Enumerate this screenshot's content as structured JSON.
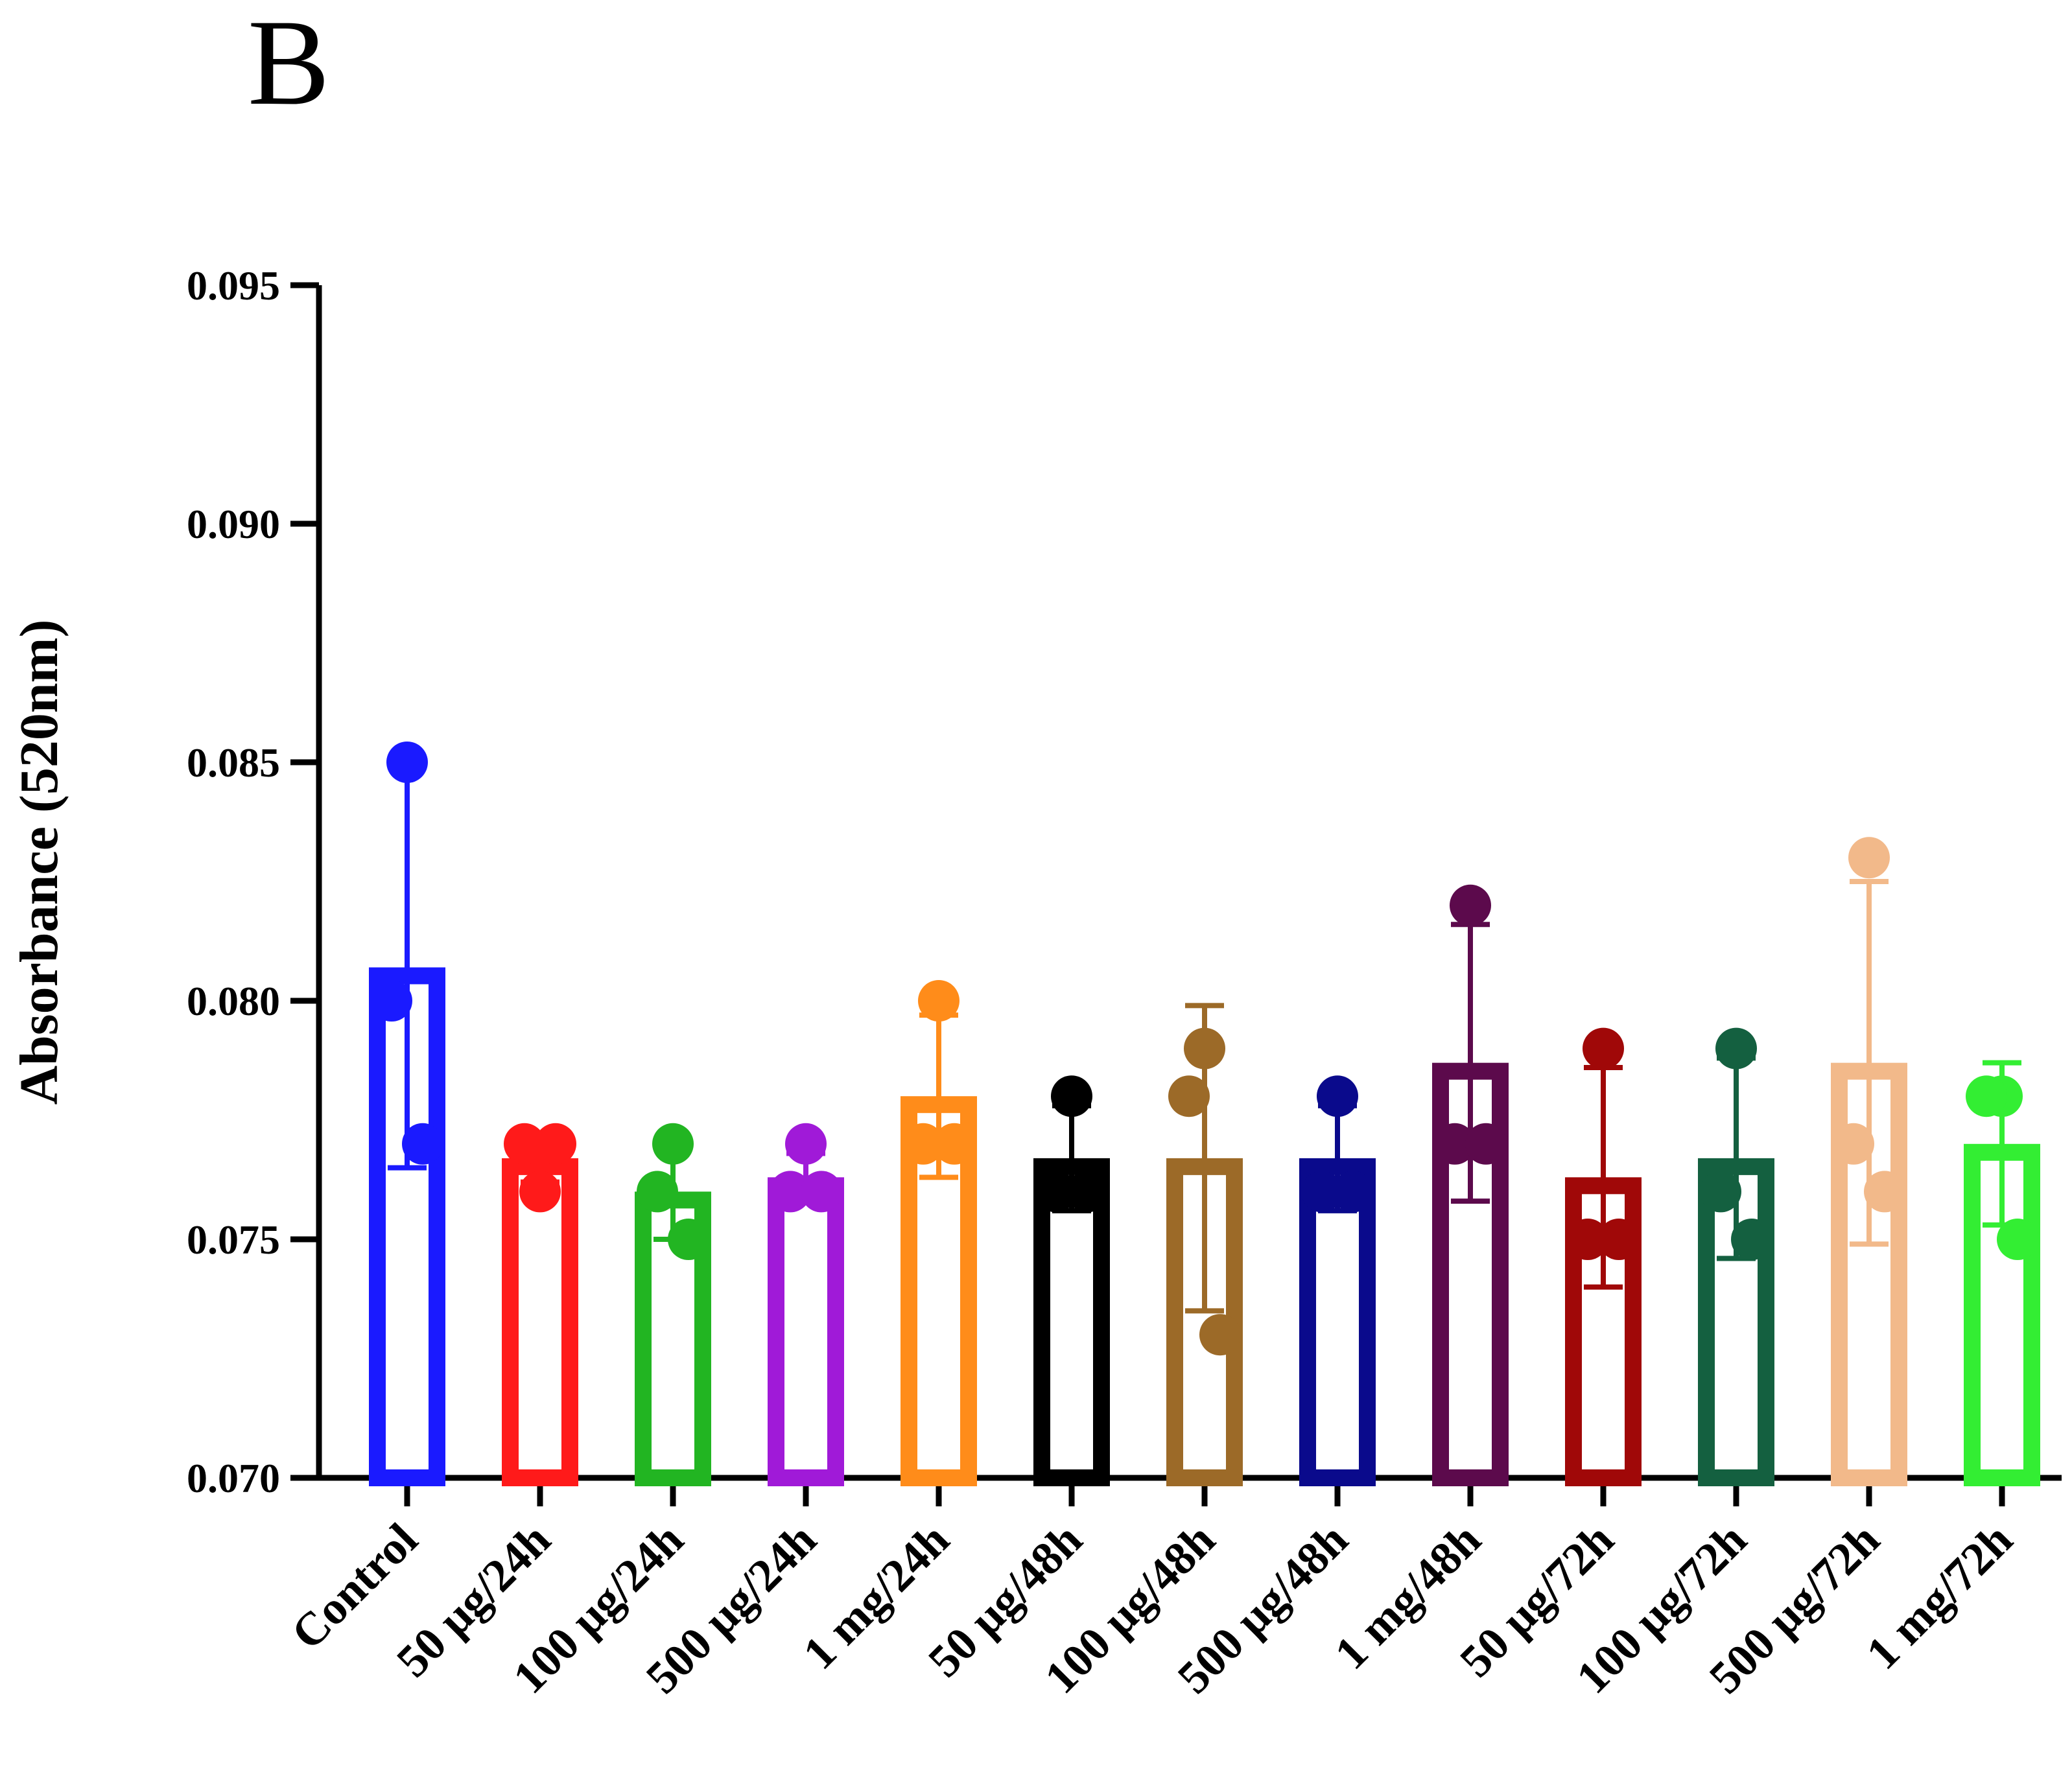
{
  "panel_label": "B",
  "chart_data": {
    "type": "bar",
    "title": "",
    "xlabel": "",
    "ylabel": "Absorbance (520nm)",
    "ylim": [
      0.07,
      0.095
    ],
    "yticks": [
      "0.070",
      "0.075",
      "0.080",
      "0.085",
      "0.090",
      "0.095"
    ],
    "ytick_values": [
      0.07,
      0.075,
      0.08,
      0.085,
      0.09,
      0.095
    ],
    "grid": false,
    "legend": "none",
    "error_bars": "mean ± SD",
    "categories": [
      "Control",
      "50 μg/24h",
      "100 μg/24h",
      "500 μg/24h",
      "1 mg/24h",
      "50 μg/48h",
      "100 μg/48h",
      "500 μg/48h",
      "1 mg/48h",
      "50 μg/72h",
      "100 μg/72h",
      "500 μg/72h",
      "1 mg/72h"
    ],
    "values": [
      0.0807,
      0.0767,
      0.076,
      0.0763,
      0.078,
      0.0767,
      0.0767,
      0.0767,
      0.0787,
      0.0763,
      0.0767,
      0.0787,
      0.077
    ],
    "error": [
      0.0042,
      0.0005,
      0.001,
      0.0005,
      0.0017,
      0.0011,
      0.0032,
      0.0011,
      0.0029,
      0.0023,
      0.0021,
      0.0038,
      0.0017
    ],
    "points": [
      [
        0.085,
        0.08,
        0.077
      ],
      [
        0.076,
        0.077,
        0.077
      ],
      [
        0.077,
        0.076,
        0.075
      ],
      [
        0.077,
        0.076,
        0.076
      ],
      [
        0.08,
        0.077,
        0.077
      ],
      [
        0.078,
        0.076,
        0.076
      ],
      [
        0.079,
        0.078,
        0.073
      ],
      [
        0.078,
        0.076,
        0.076
      ],
      [
        0.082,
        0.077,
        0.077
      ],
      [
        0.079,
        0.075,
        0.075
      ],
      [
        0.079,
        0.076,
        0.075
      ],
      [
        0.083,
        0.077,
        0.076
      ],
      [
        0.078,
        0.078,
        0.075
      ]
    ],
    "colors": [
      "#1a1aff",
      "#ff1a1a",
      "#22b522",
      "#a01ad8",
      "#ff8c1a",
      "#000000",
      "#9c6a28",
      "#0a0a8c",
      "#5c0a4c",
      "#a00808",
      "#146040",
      "#f2b98a",
      "#33ee33"
    ]
  }
}
